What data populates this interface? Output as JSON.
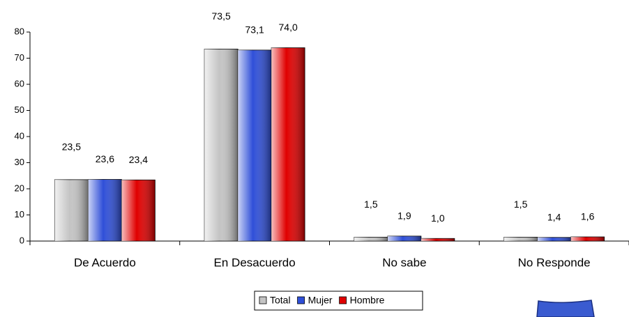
{
  "chart_data": {
    "type": "bar",
    "categories": [
      "De Acuerdo",
      "En Desacuerdo",
      "No sabe",
      "No Responde"
    ],
    "series": [
      {
        "name": "Total",
        "color": "#c4c4c4",
        "values": [
          23.5,
          73.5,
          1.5,
          1.5
        ],
        "value_labels": [
          "23,5",
          "73,5",
          "1,5",
          "1,5"
        ]
      },
      {
        "name": "Mujer",
        "color": "#2f4fd8",
        "values": [
          23.6,
          73.1,
          1.9,
          1.4
        ],
        "value_labels": [
          "23,6",
          "73,1",
          "1,9",
          "1,4"
        ]
      },
      {
        "name": "Hombre",
        "color": "#e00000",
        "values": [
          23.4,
          74.0,
          1.0,
          1.6
        ],
        "value_labels": [
          "23,4",
          "74,0",
          "1,0",
          "1,6"
        ]
      }
    ],
    "ylim": [
      0,
      80
    ],
    "yticks": [
      0,
      10,
      20,
      30,
      40,
      50,
      60,
      70,
      80
    ],
    "grid": false
  }
}
